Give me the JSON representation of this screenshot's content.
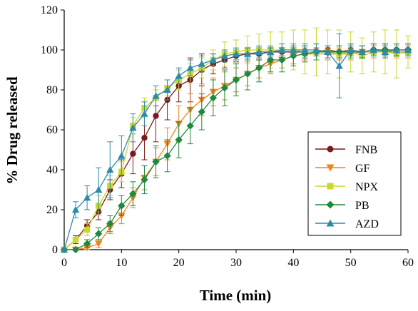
{
  "chart_data": {
    "type": "line",
    "title": "",
    "xlabel": "Time (min)",
    "ylabel": "% Drug released",
    "xlim": [
      0,
      60
    ],
    "ylim": [
      0,
      120
    ],
    "xticks": [
      0,
      10,
      20,
      30,
      40,
      50,
      60
    ],
    "yticks": [
      0,
      20,
      40,
      60,
      80,
      100,
      120
    ],
    "grid": false,
    "legend_position": "right-middle",
    "series": [
      {
        "name": "FNB",
        "color": "#7b1a1a",
        "marker": "circle",
        "x": [
          0,
          2,
          4,
          6,
          8,
          10,
          12,
          14,
          16,
          18,
          20,
          22,
          24,
          26,
          28,
          30,
          32,
          34,
          36,
          38,
          40,
          42,
          44,
          46,
          48,
          50,
          52,
          54,
          56,
          58,
          60
        ],
        "y": [
          0,
          5,
          12,
          19,
          30,
          38,
          48,
          56,
          67,
          75,
          82,
          85,
          90,
          93,
          95,
          97,
          98,
          98,
          99,
          99,
          99,
          99,
          99,
          100,
          99,
          100,
          99,
          100,
          100,
          100,
          100
        ],
        "err": [
          0,
          2,
          3,
          4,
          5,
          7,
          10,
          11,
          13,
          10,
          8,
          11,
          8,
          5,
          4,
          3,
          3,
          3,
          2,
          2,
          2,
          3,
          2,
          2,
          3,
          3,
          3,
          3,
          3,
          3,
          3
        ]
      },
      {
        "name": "GF",
        "color": "#f2811d",
        "marker": "triangle-down",
        "x": [
          0,
          2,
          4,
          6,
          8,
          10,
          12,
          14,
          16,
          18,
          20,
          22,
          24,
          26,
          28,
          30,
          32,
          34,
          36,
          38,
          40,
          42,
          44,
          46,
          48,
          50,
          52,
          54,
          56,
          58,
          60
        ],
        "y": [
          0,
          0,
          1,
          3,
          11,
          17,
          26,
          36,
          44,
          53,
          63,
          70,
          75,
          79,
          82,
          85,
          88,
          91,
          93,
          95,
          97,
          98,
          98,
          98,
          98,
          98,
          99,
          99,
          99,
          99,
          99
        ],
        "err": [
          0,
          0,
          1,
          2,
          3,
          4,
          5,
          6,
          7,
          8,
          9,
          8,
          8,
          7,
          7,
          6,
          6,
          5,
          5,
          4,
          4,
          3,
          3,
          3,
          3,
          3,
          3,
          3,
          3,
          3,
          3
        ]
      },
      {
        "name": "NPX",
        "color": "#c9d82a",
        "marker": "square",
        "x": [
          0,
          2,
          4,
          6,
          8,
          10,
          12,
          14,
          16,
          18,
          20,
          22,
          24,
          26,
          28,
          30,
          32,
          34,
          36,
          38,
          40,
          42,
          44,
          46,
          48,
          50,
          52,
          54,
          56,
          58,
          60
        ],
        "y": [
          0,
          5,
          10,
          22,
          32,
          39,
          62,
          71,
          76,
          81,
          85,
          88,
          91,
          95,
          98,
          99,
          100,
          100,
          100,
          100,
          100,
          99,
          99,
          99,
          98,
          99,
          97,
          99,
          99,
          98,
          99
        ],
        "err": [
          0,
          1,
          3,
          5,
          5,
          5,
          4,
          5,
          4,
          4,
          5,
          5,
          5,
          5,
          6,
          6,
          7,
          8,
          9,
          9,
          10,
          11,
          12,
          11,
          12,
          10,
          9,
          10,
          11,
          12,
          8
        ]
      },
      {
        "name": "PB",
        "color": "#1f8a3d",
        "marker": "diamond",
        "x": [
          0,
          2,
          4,
          6,
          8,
          10,
          12,
          14,
          16,
          18,
          20,
          22,
          24,
          26,
          28,
          30,
          32,
          34,
          36,
          38,
          40,
          42,
          44,
          46,
          48,
          50,
          52,
          54,
          56,
          58,
          60
        ],
        "y": [
          0,
          0,
          3,
          8,
          13,
          22,
          28,
          35,
          44,
          47,
          55,
          62,
          69,
          76,
          81,
          85,
          88,
          91,
          95,
          95,
          97,
          98,
          99,
          99,
          99,
          99,
          99,
          100,
          100,
          100,
          100
        ],
        "err": [
          0,
          0,
          2,
          3,
          4,
          5,
          6,
          7,
          8,
          8,
          9,
          9,
          9,
          9,
          9,
          8,
          8,
          7,
          6,
          6,
          5,
          4,
          4,
          3,
          3,
          3,
          3,
          3,
          3,
          3,
          3
        ]
      },
      {
        "name": "AZD",
        "color": "#2e8aa8",
        "marker": "triangle-up",
        "x": [
          0,
          2,
          4,
          6,
          8,
          10,
          12,
          14,
          16,
          18,
          20,
          22,
          24,
          26,
          28,
          30,
          32,
          34,
          36,
          38,
          40,
          42,
          44,
          46,
          48,
          50,
          52,
          54,
          56,
          58,
          60
        ],
        "y": [
          0,
          20,
          26,
          30,
          40,
          47,
          61,
          68,
          77,
          80,
          87,
          91,
          93,
          95,
          97,
          98,
          98,
          99,
          99,
          100,
          100,
          100,
          100,
          99,
          92,
          100,
          99,
          100,
          99,
          100,
          100
        ],
        "err": [
          0,
          4,
          6,
          11,
          14,
          10,
          7,
          6,
          5,
          5,
          4,
          4,
          4,
          3,
          3,
          3,
          3,
          3,
          3,
          3,
          3,
          3,
          3,
          3,
          16,
          3,
          3,
          3,
          3,
          3,
          3
        ]
      }
    ]
  }
}
